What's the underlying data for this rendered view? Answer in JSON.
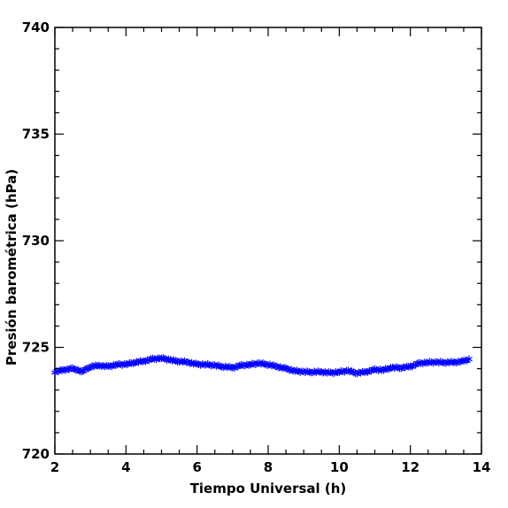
{
  "chart_data": {
    "type": "scatter",
    "title": "",
    "xlabel": "Tiempo Universal (h)",
    "ylabel": "Presión barométrica (hPa)",
    "xlim": [
      2,
      14
    ],
    "ylim": [
      720,
      740
    ],
    "x_ticks": [
      2,
      4,
      6,
      8,
      10,
      12,
      14
    ],
    "y_ticks": [
      720,
      725,
      730,
      735,
      740
    ],
    "x_tick_labels": [
      "2",
      "4",
      "6",
      "8",
      "10",
      "12",
      "14"
    ],
    "y_tick_labels": [
      "720",
      "725",
      "730",
      "735",
      "740"
    ],
    "grid": false,
    "marker": "asterisk",
    "series": [
      {
        "color": "#0000ff",
        "points": [
          [
            2.0,
            723.85
          ],
          [
            2.25,
            723.95
          ],
          [
            2.5,
            724.0
          ],
          [
            2.6,
            723.95
          ],
          [
            2.75,
            723.85
          ],
          [
            3.0,
            724.1
          ],
          [
            3.25,
            724.15
          ],
          [
            3.5,
            724.1
          ],
          [
            3.75,
            724.2
          ],
          [
            4.0,
            724.2
          ],
          [
            4.25,
            724.3
          ],
          [
            4.5,
            724.35
          ],
          [
            4.75,
            724.45
          ],
          [
            5.0,
            724.5
          ],
          [
            5.25,
            724.4
          ],
          [
            5.5,
            724.35
          ],
          [
            5.75,
            724.3
          ],
          [
            6.0,
            724.2
          ],
          [
            6.25,
            724.2
          ],
          [
            6.5,
            724.15
          ],
          [
            6.75,
            724.1
          ],
          [
            7.0,
            724.05
          ],
          [
            7.25,
            724.15
          ],
          [
            7.5,
            724.2
          ],
          [
            7.75,
            724.25
          ],
          [
            8.0,
            724.2
          ],
          [
            8.25,
            724.1
          ],
          [
            8.5,
            724.0
          ],
          [
            8.75,
            723.9
          ],
          [
            9.0,
            723.85
          ],
          [
            9.25,
            723.85
          ],
          [
            9.5,
            723.85
          ],
          [
            9.75,
            723.8
          ],
          [
            10.0,
            723.85
          ],
          [
            10.25,
            723.9
          ],
          [
            10.5,
            723.8
          ],
          [
            10.75,
            723.85
          ],
          [
            11.0,
            723.95
          ],
          [
            11.25,
            723.95
          ],
          [
            11.5,
            724.05
          ],
          [
            11.75,
            724.05
          ],
          [
            12.0,
            724.1
          ],
          [
            12.25,
            724.25
          ],
          [
            12.5,
            724.3
          ],
          [
            12.75,
            724.3
          ],
          [
            13.0,
            724.3
          ],
          [
            13.25,
            724.3
          ],
          [
            13.5,
            724.35
          ],
          [
            13.65,
            724.45
          ]
        ]
      }
    ]
  }
}
